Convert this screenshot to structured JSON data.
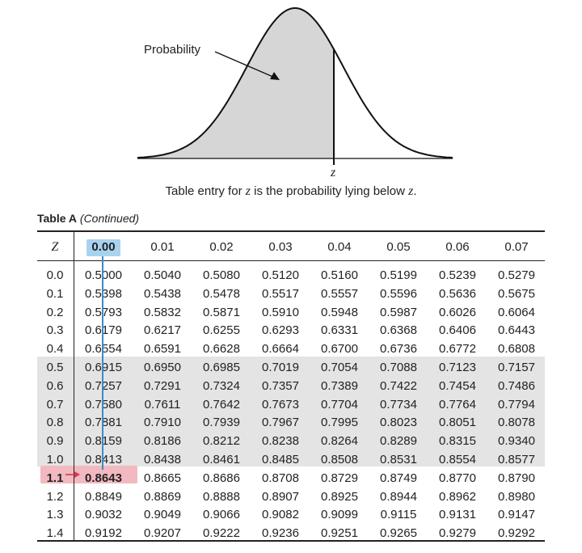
{
  "figure": {
    "probability_label": "Probability",
    "z_label": "z",
    "caption_prefix": "Table entry for ",
    "caption_z": "z",
    "caption_suffix": " is the probability lying below ",
    "caption_z2": "z",
    "caption_end": ".",
    "shade_color": "#d6d6d6"
  },
  "table": {
    "title_bold": "Table A",
    "title_italic": "(Continued)",
    "z_header": "Z",
    "column_headers": [
      "0.00",
      "0.01",
      "0.02",
      "0.03",
      "0.04",
      "0.05",
      "0.06",
      "0.07"
    ],
    "selected_column": 0,
    "highlight_row": 11,
    "highlight_color": "#f2b9c0",
    "selected_header_color": "#a8d3ef",
    "rows": [
      {
        "z": "0.0",
        "values": [
          "0.5000",
          "0.5040",
          "0.5080",
          "0.5120",
          "0.5160",
          "0.5199",
          "0.5239",
          "0.5279"
        ]
      },
      {
        "z": "0.1",
        "values": [
          "0.5398",
          "0.5438",
          "0.5478",
          "0.5517",
          "0.5557",
          "0.5596",
          "0.5636",
          "0.5675"
        ]
      },
      {
        "z": "0.2",
        "values": [
          "0.5793",
          "0.5832",
          "0.5871",
          "0.5910",
          "0.5948",
          "0.5987",
          "0.6026",
          "0.6064"
        ]
      },
      {
        "z": "0.3",
        "values": [
          "0.6179",
          "0.6217",
          "0.6255",
          "0.6293",
          "0.6331",
          "0.6368",
          "0.6406",
          "0.6443"
        ]
      },
      {
        "z": "0.4",
        "values": [
          "0.6554",
          "0.6591",
          "0.6628",
          "0.6664",
          "0.6700",
          "0.6736",
          "0.6772",
          "0.6808"
        ]
      },
      {
        "z": "0.5",
        "values": [
          "0.6915",
          "0.6950",
          "0.6985",
          "0.7019",
          "0.7054",
          "0.7088",
          "0.7123",
          "0.7157"
        ]
      },
      {
        "z": "0.6",
        "values": [
          "0.7257",
          "0.7291",
          "0.7324",
          "0.7357",
          "0.7389",
          "0.7422",
          "0.7454",
          "0.7486"
        ]
      },
      {
        "z": "0.7",
        "values": [
          "0.7580",
          "0.7611",
          "0.7642",
          "0.7673",
          "0.7704",
          "0.7734",
          "0.7764",
          "0.7794"
        ]
      },
      {
        "z": "0.8",
        "values": [
          "0.7881",
          "0.7910",
          "0.7939",
          "0.7967",
          "0.7995",
          "0.8023",
          "0.8051",
          "0.8078"
        ]
      },
      {
        "z": "0.9",
        "values": [
          "0.8159",
          "0.8186",
          "0.8212",
          "0.8238",
          "0.8264",
          "0.8289",
          "0.8315",
          "0.9340"
        ]
      },
      {
        "z": "1.0",
        "values": [
          "0.8413",
          "0.8438",
          "0.8461",
          "0.8485",
          "0.8508",
          "0.8531",
          "0.8554",
          "0.8577"
        ]
      },
      {
        "z": "1.1",
        "values": [
          "0.8643",
          "0.8665",
          "0.8686",
          "0.8708",
          "0.8729",
          "0.8749",
          "0.8770",
          "0.8790"
        ]
      },
      {
        "z": "1.2",
        "values": [
          "0.8849",
          "0.8869",
          "0.8888",
          "0.8907",
          "0.8925",
          "0.8944",
          "0.8962",
          "0.8980"
        ]
      },
      {
        "z": "1.3",
        "values": [
          "0.9032",
          "0.9049",
          "0.9066",
          "0.9082",
          "0.9099",
          "0.9115",
          "0.9131",
          "0.9147"
        ]
      },
      {
        "z": "1.4",
        "values": [
          "0.9192",
          "0.9207",
          "0.9222",
          "0.9236",
          "0.9251",
          "0.9265",
          "0.9279",
          "0.9292"
        ]
      }
    ]
  }
}
